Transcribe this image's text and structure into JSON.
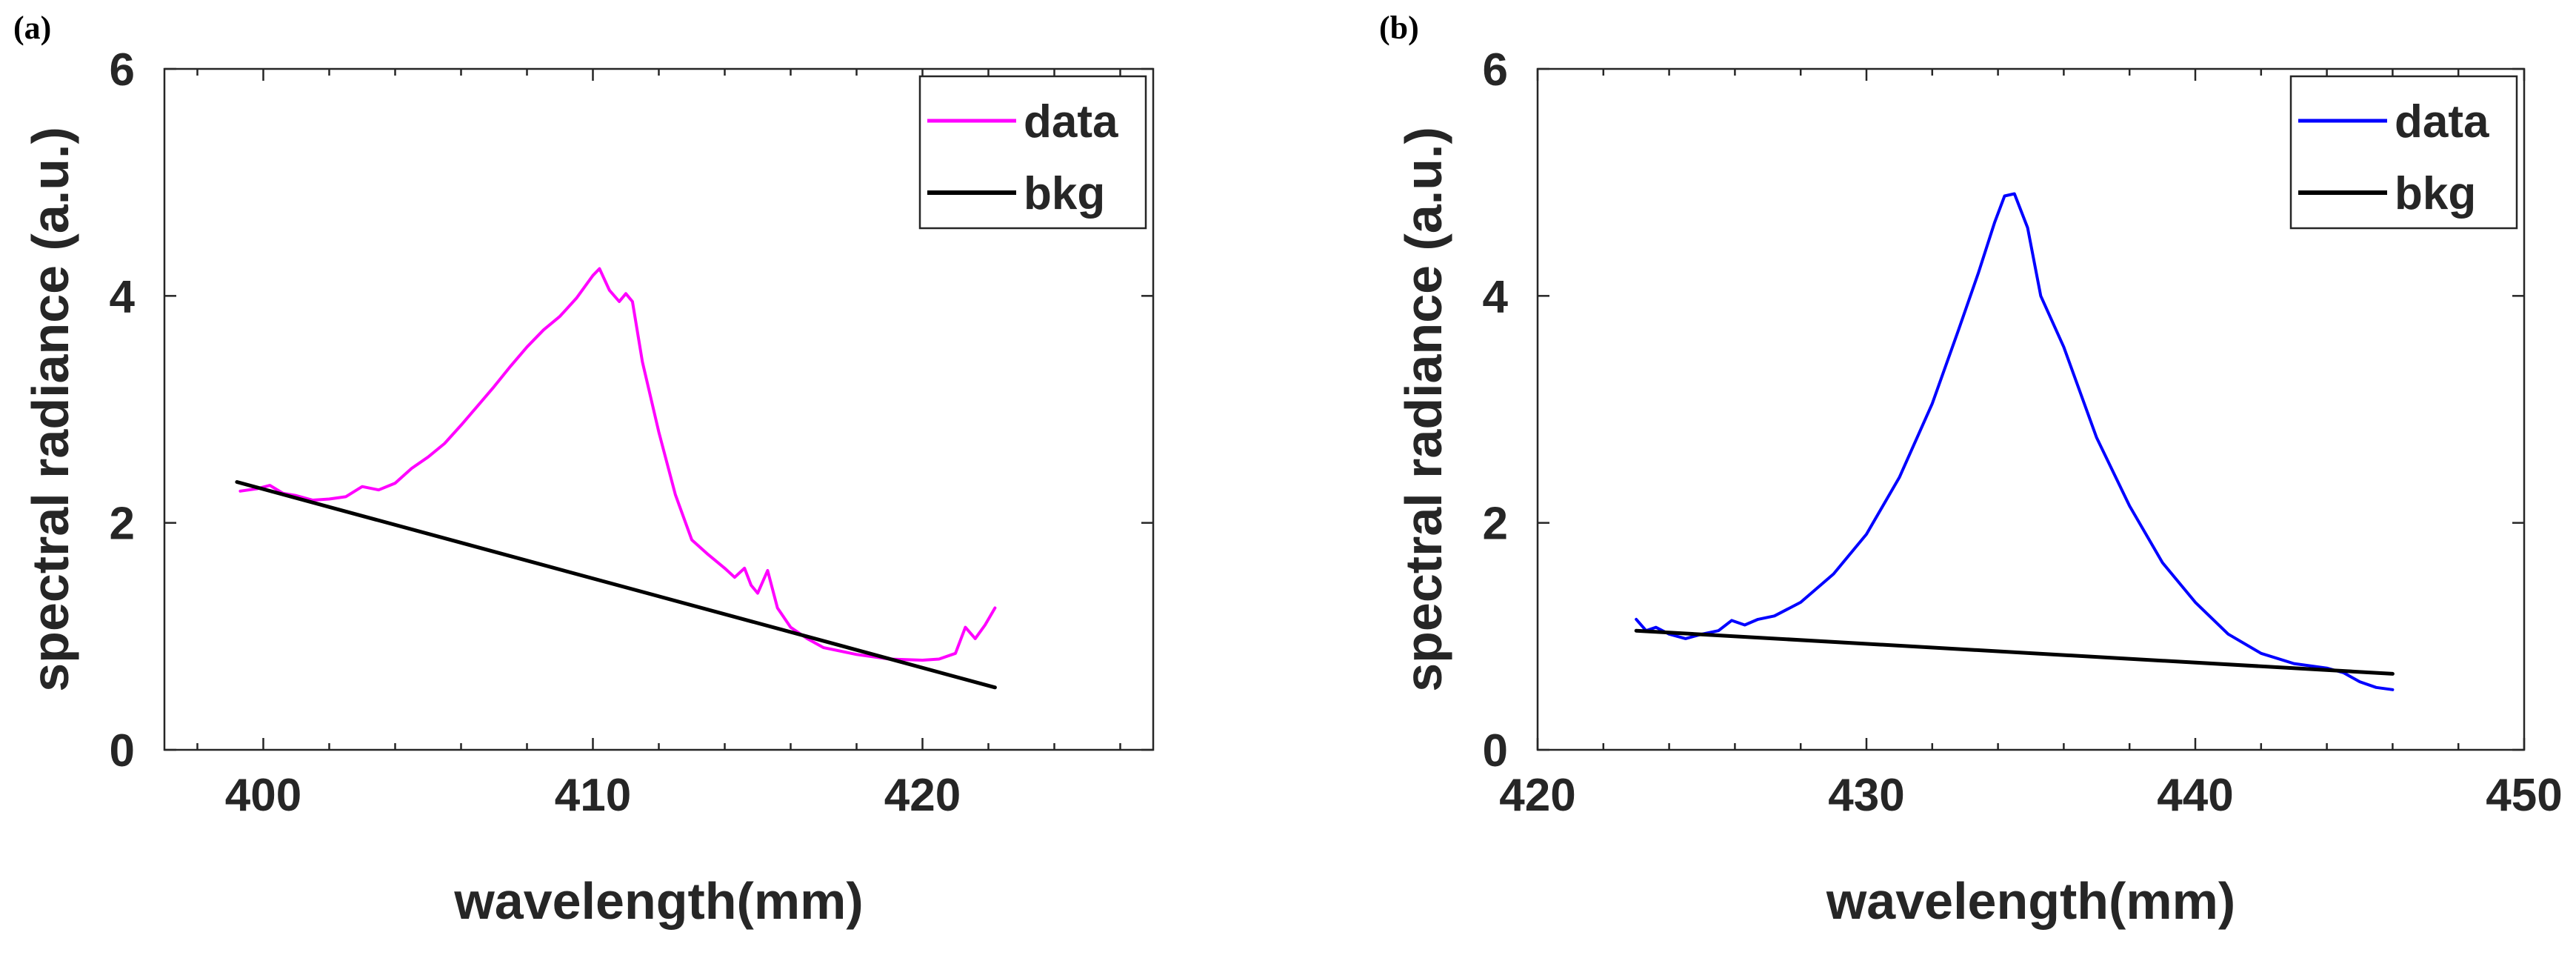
{
  "chart_data": [
    {
      "type": "line",
      "panel_label": "(a)",
      "title": "",
      "xlabel": "wavelength(mm)",
      "ylabel": "spectral radiance (a.u.)",
      "xlim": [
        397,
        427
      ],
      "ylim": [
        0,
        6
      ],
      "xticks": [
        400,
        410,
        420
      ],
      "yticks": [
        0,
        2,
        4,
        6
      ],
      "xtick_labels": [
        "400",
        "410",
        "420"
      ],
      "ytick_labels": [
        "0",
        "2",
        "4",
        "6"
      ],
      "grid": false,
      "legend_position": "top-right",
      "series": [
        {
          "name": "data",
          "color": "#ff00ff",
          "x": [
            399.3,
            399.8,
            400.2,
            400.6,
            401.0,
            401.5,
            402.0,
            402.5,
            403.0,
            403.5,
            404.0,
            404.5,
            405.0,
            405.5,
            406.0,
            406.5,
            407.0,
            407.5,
            408.0,
            408.5,
            409.0,
            409.5,
            410.0,
            410.2,
            410.5,
            410.8,
            411.0,
            411.2,
            411.5,
            412.0,
            412.5,
            413.0,
            413.5,
            414.0,
            414.3,
            414.6,
            414.8,
            415.0,
            415.3,
            415.6,
            416.0,
            416.5,
            417.0,
            418.0,
            419.0,
            420.0,
            420.5,
            421.0,
            421.3,
            421.6,
            421.9,
            422.2
          ],
          "y": [
            2.28,
            2.3,
            2.33,
            2.26,
            2.24,
            2.2,
            2.21,
            2.23,
            2.32,
            2.29,
            2.35,
            2.48,
            2.58,
            2.7,
            2.86,
            3.03,
            3.2,
            3.38,
            3.55,
            3.7,
            3.82,
            3.98,
            4.18,
            4.24,
            4.05,
            3.95,
            4.02,
            3.95,
            3.42,
            2.8,
            2.25,
            1.85,
            1.72,
            1.6,
            1.52,
            1.6,
            1.45,
            1.38,
            1.58,
            1.25,
            1.08,
            0.98,
            0.9,
            0.84,
            0.8,
            0.79,
            0.8,
            0.85,
            1.08,
            0.98,
            1.1,
            1.25
          ]
        },
        {
          "name": "bkg",
          "color": "#000000",
          "x": [
            399.2,
            422.2
          ],
          "y": [
            2.36,
            0.55
          ]
        }
      ]
    },
    {
      "type": "line",
      "panel_label": "(b)",
      "title": "",
      "xlabel": "wavelength(mm)",
      "ylabel": "spectral radiance (a.u.)",
      "xlim": [
        420,
        450
      ],
      "ylim": [
        0,
        6
      ],
      "xticks": [
        420,
        430,
        440,
        450
      ],
      "yticks": [
        0,
        2,
        4,
        6
      ],
      "xtick_labels": [
        "420",
        "430",
        "440",
        "450"
      ],
      "ytick_labels": [
        "0",
        "2",
        "4",
        "6"
      ],
      "grid": false,
      "legend_position": "top-right",
      "series": [
        {
          "name": "data",
          "color": "#0000ff",
          "x": [
            423.0,
            423.3,
            423.6,
            424.0,
            424.5,
            425.0,
            425.5,
            425.9,
            426.3,
            426.7,
            427.2,
            428.0,
            429.0,
            430.0,
            431.0,
            432.0,
            432.8,
            433.4,
            433.9,
            434.2,
            434.5,
            434.9,
            435.3,
            436.0,
            437.0,
            438.0,
            439.0,
            440.0,
            441.0,
            442.0,
            443.0,
            444.0,
            444.5,
            445.0,
            445.5,
            446.0
          ],
          "y": [
            1.15,
            1.05,
            1.08,
            1.02,
            0.98,
            1.02,
            1.05,
            1.14,
            1.1,
            1.15,
            1.18,
            1.3,
            1.55,
            1.9,
            2.4,
            3.05,
            3.7,
            4.2,
            4.65,
            4.88,
            4.9,
            4.6,
            4.0,
            3.55,
            2.75,
            2.15,
            1.65,
            1.3,
            1.02,
            0.85,
            0.76,
            0.72,
            0.68,
            0.6,
            0.55,
            0.53
          ]
        },
        {
          "name": "bkg",
          "color": "#000000",
          "x": [
            423.0,
            446.0
          ],
          "y": [
            1.05,
            0.67
          ]
        }
      ]
    }
  ]
}
